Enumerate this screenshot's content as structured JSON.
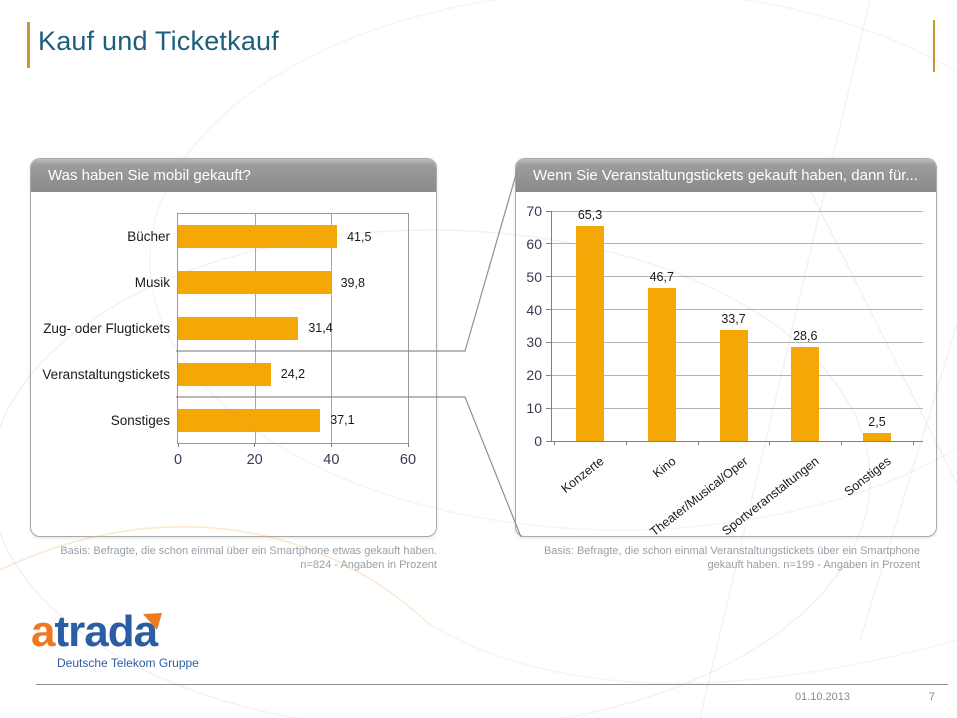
{
  "slide": {
    "title": "Kauf und Ticketkauf",
    "date": "01.10.2013",
    "page_number": "7"
  },
  "logo": {
    "brand_first_letter": "a",
    "brand_rest": "trada",
    "subtitle": "Deutsche Telekom Gruppe"
  },
  "colors": {
    "bar_orange": "#f5a805",
    "accent_gold": "#c8992e",
    "title_blue": "#1d5e7e",
    "logo_orange": "#f0781e",
    "logo_blue": "#2b5da7",
    "header_gray": "#8a8a8a",
    "axis_number_color": "#3e3754"
  },
  "chart_data": [
    {
      "id": "mobile-purchases",
      "type": "bar",
      "orientation": "horizontal",
      "title": "Was haben Sie mobil gekauft?",
      "categories": [
        "Bücher",
        "Musik",
        "Zug- oder Flugtickets",
        "Veranstaltungstickets",
        "Sonstiges"
      ],
      "values": [
        41.5,
        39.8,
        31.4,
        24.2,
        37.1
      ],
      "value_labels": [
        "41,5",
        "39,8",
        "31,4",
        "24,2",
        "37,1"
      ],
      "xticks": [
        0,
        20,
        40,
        60
      ],
      "xlim": [
        0,
        60
      ],
      "grid": "vertical",
      "legend": "none",
      "highlighted_category": "Veranstaltungstickets",
      "basis_line1": "Basis: Befragte, die schon einmal über ein Smartphone etwas gekauft haben.",
      "basis_line2": "n=824 - Angaben in Prozent"
    },
    {
      "id": "ticket-types",
      "type": "bar",
      "orientation": "vertical",
      "title": "Wenn Sie Veranstaltungstickets gekauft haben, dann für...",
      "categories": [
        "Konzerte",
        "Kino",
        "Theater/Musical/Oper",
        "Sportveranstaltungen",
        "Sonstiges"
      ],
      "values": [
        65.3,
        46.7,
        33.7,
        28.6,
        2.5
      ],
      "value_labels": [
        "65,3",
        "46,7",
        "33,7",
        "28,6",
        "2,5"
      ],
      "yticks": [
        0,
        10,
        20,
        30,
        40,
        50,
        60,
        70
      ],
      "ylim": [
        0,
        70
      ],
      "grid": "horizontal",
      "legend": "none",
      "basis_line1": "Basis: Befragte, die schon einmal Veranstaltungstickets über ein Smartphone",
      "basis_line2": "gekauft haben. n=199 - Angaben in Prozent"
    }
  ]
}
